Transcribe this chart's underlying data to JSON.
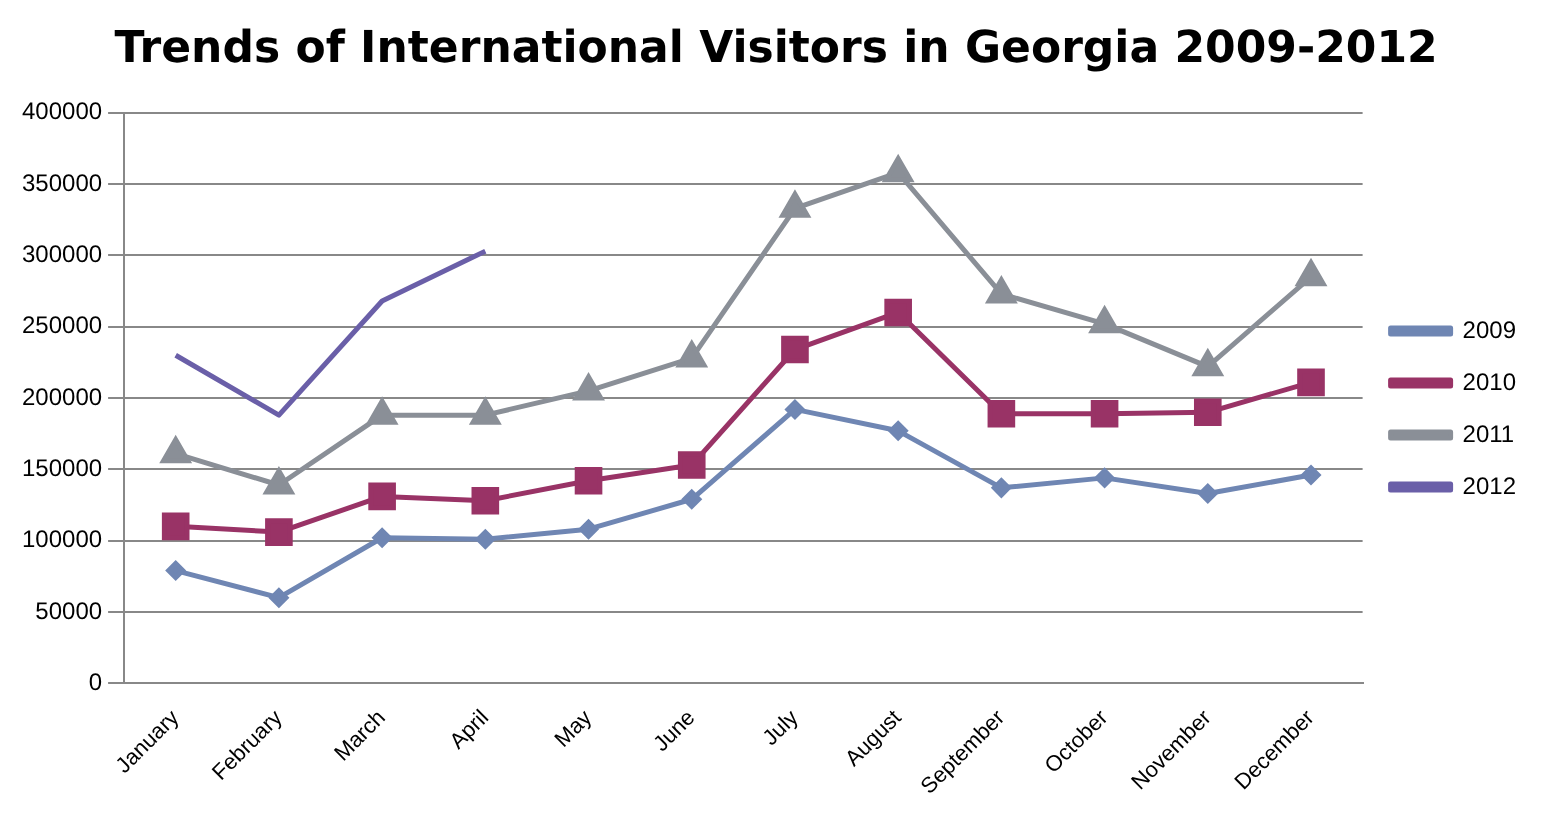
{
  "chart_data": {
    "type": "line",
    "title": "Trends of International Visitors in Georgia 2009-2012",
    "categories": [
      "January",
      "February",
      "March",
      "April",
      "May",
      "June",
      "July",
      "August",
      "September",
      "October",
      "November",
      "December"
    ],
    "series": [
      {
        "name": "2009",
        "color": "#6f86b3",
        "marker": "diamond",
        "values": [
          79000,
          60000,
          102000,
          101000,
          108000,
          129000,
          192000,
          177000,
          137000,
          144000,
          133000,
          146000
        ]
      },
      {
        "name": "2010",
        "color": "#993366",
        "marker": "square",
        "values": [
          110000,
          106000,
          131000,
          128000,
          142000,
          153000,
          234000,
          260000,
          189000,
          189000,
          190000,
          211000
        ]
      },
      {
        "name": "2011",
        "color": "#8a8f97",
        "marker": "triangle",
        "values": [
          161000,
          139000,
          188000,
          188000,
          205000,
          228000,
          333000,
          358000,
          273000,
          252000,
          222000,
          285000
        ]
      },
      {
        "name": "2012",
        "color": "#6a5fa8",
        "marker": "none",
        "values": [
          230000,
          188000,
          268000,
          303000,
          null,
          null,
          null,
          null,
          null,
          null,
          null,
          null
        ]
      }
    ],
    "ylim": [
      0,
      400000
    ],
    "yticks": [
      0,
      50000,
      100000,
      150000,
      200000,
      250000,
      300000,
      350000,
      400000
    ],
    "grid": "y",
    "legend": "right"
  }
}
